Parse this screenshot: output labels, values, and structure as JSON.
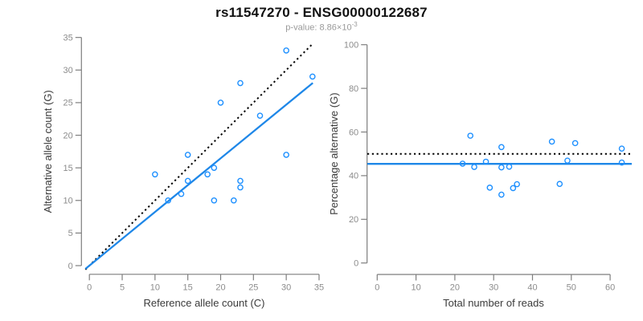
{
  "header": {
    "title": "rs11547270 - ENSG00000122687",
    "subtitle_prefix": "p-value: 8.86×10",
    "subtitle_exponent": "-3"
  },
  "colors": {
    "point_blue": "#1E90FF",
    "line_blue": "#1E87E8",
    "dotted_line": "#000000",
    "axis_line": "#7E7E7E",
    "tick_label": "#8C8C8C",
    "axis_title": "#3A3A3A",
    "background": "#FFFFFF"
  },
  "chart_data": [
    {
      "id": "allele-counts",
      "type": "scatter",
      "xlabel": "Reference allele count (C)",
      "ylabel": "Alternative allele count (G)",
      "xlim": [
        0,
        35
      ],
      "ylim": [
        0,
        35
      ],
      "xticks": [
        0,
        5,
        10,
        15,
        20,
        25,
        30,
        35
      ],
      "yticks": [
        0,
        5,
        10,
        15,
        20,
        25,
        30,
        35
      ],
      "grid": false,
      "legend": "none",
      "points": [
        [
          10,
          14
        ],
        [
          12,
          10
        ],
        [
          14,
          11
        ],
        [
          15,
          13
        ],
        [
          15,
          17
        ],
        [
          18,
          14
        ],
        [
          19,
          10
        ],
        [
          19,
          15
        ],
        [
          20,
          25
        ],
        [
          22,
          10
        ],
        [
          23,
          12
        ],
        [
          23,
          13
        ],
        [
          23,
          28
        ],
        [
          26,
          23
        ],
        [
          30,
          17
        ],
        [
          30,
          33
        ],
        [
          34,
          29
        ]
      ],
      "lines": [
        {
          "name": "identity-line",
          "style": "dotted",
          "color_key": "dotted_line",
          "slope": 1,
          "intercept": 0
        },
        {
          "name": "fit-line",
          "style": "solid",
          "color_key": "line_blue",
          "slope": 0.823,
          "intercept": 0
        }
      ]
    },
    {
      "id": "percentage-vs-depth",
      "type": "scatter",
      "xlabel": "Total number of reads",
      "ylabel": "Percentage alternative (G)",
      "xlim": [
        0,
        63
      ],
      "ylim": [
        0,
        100
      ],
      "xticks": [
        0,
        10,
        20,
        30,
        40,
        50,
        60
      ],
      "yticks": [
        0,
        20,
        40,
        60,
        80,
        100
      ],
      "grid": false,
      "legend": "none",
      "points": [
        [
          24,
          58.3
        ],
        [
          22,
          45.5
        ],
        [
          25,
          44.0
        ],
        [
          28,
          46.4
        ],
        [
          32,
          53.1
        ],
        [
          32,
          43.8
        ],
        [
          29,
          34.5
        ],
        [
          34,
          44.1
        ],
        [
          45,
          55.6
        ],
        [
          32,
          31.3
        ],
        [
          35,
          34.3
        ],
        [
          36,
          36.1
        ],
        [
          51,
          54.9
        ],
        [
          49,
          46.9
        ],
        [
          47,
          36.2
        ],
        [
          63,
          52.4
        ],
        [
          63,
          46.0
        ]
      ],
      "lines": [
        {
          "name": "expected-50pct-line",
          "style": "dotted",
          "color_key": "dotted_line",
          "hline": 50
        },
        {
          "name": "mean-percentage-line",
          "style": "solid",
          "color_key": "line_blue",
          "hline": 45.4
        }
      ]
    }
  ]
}
